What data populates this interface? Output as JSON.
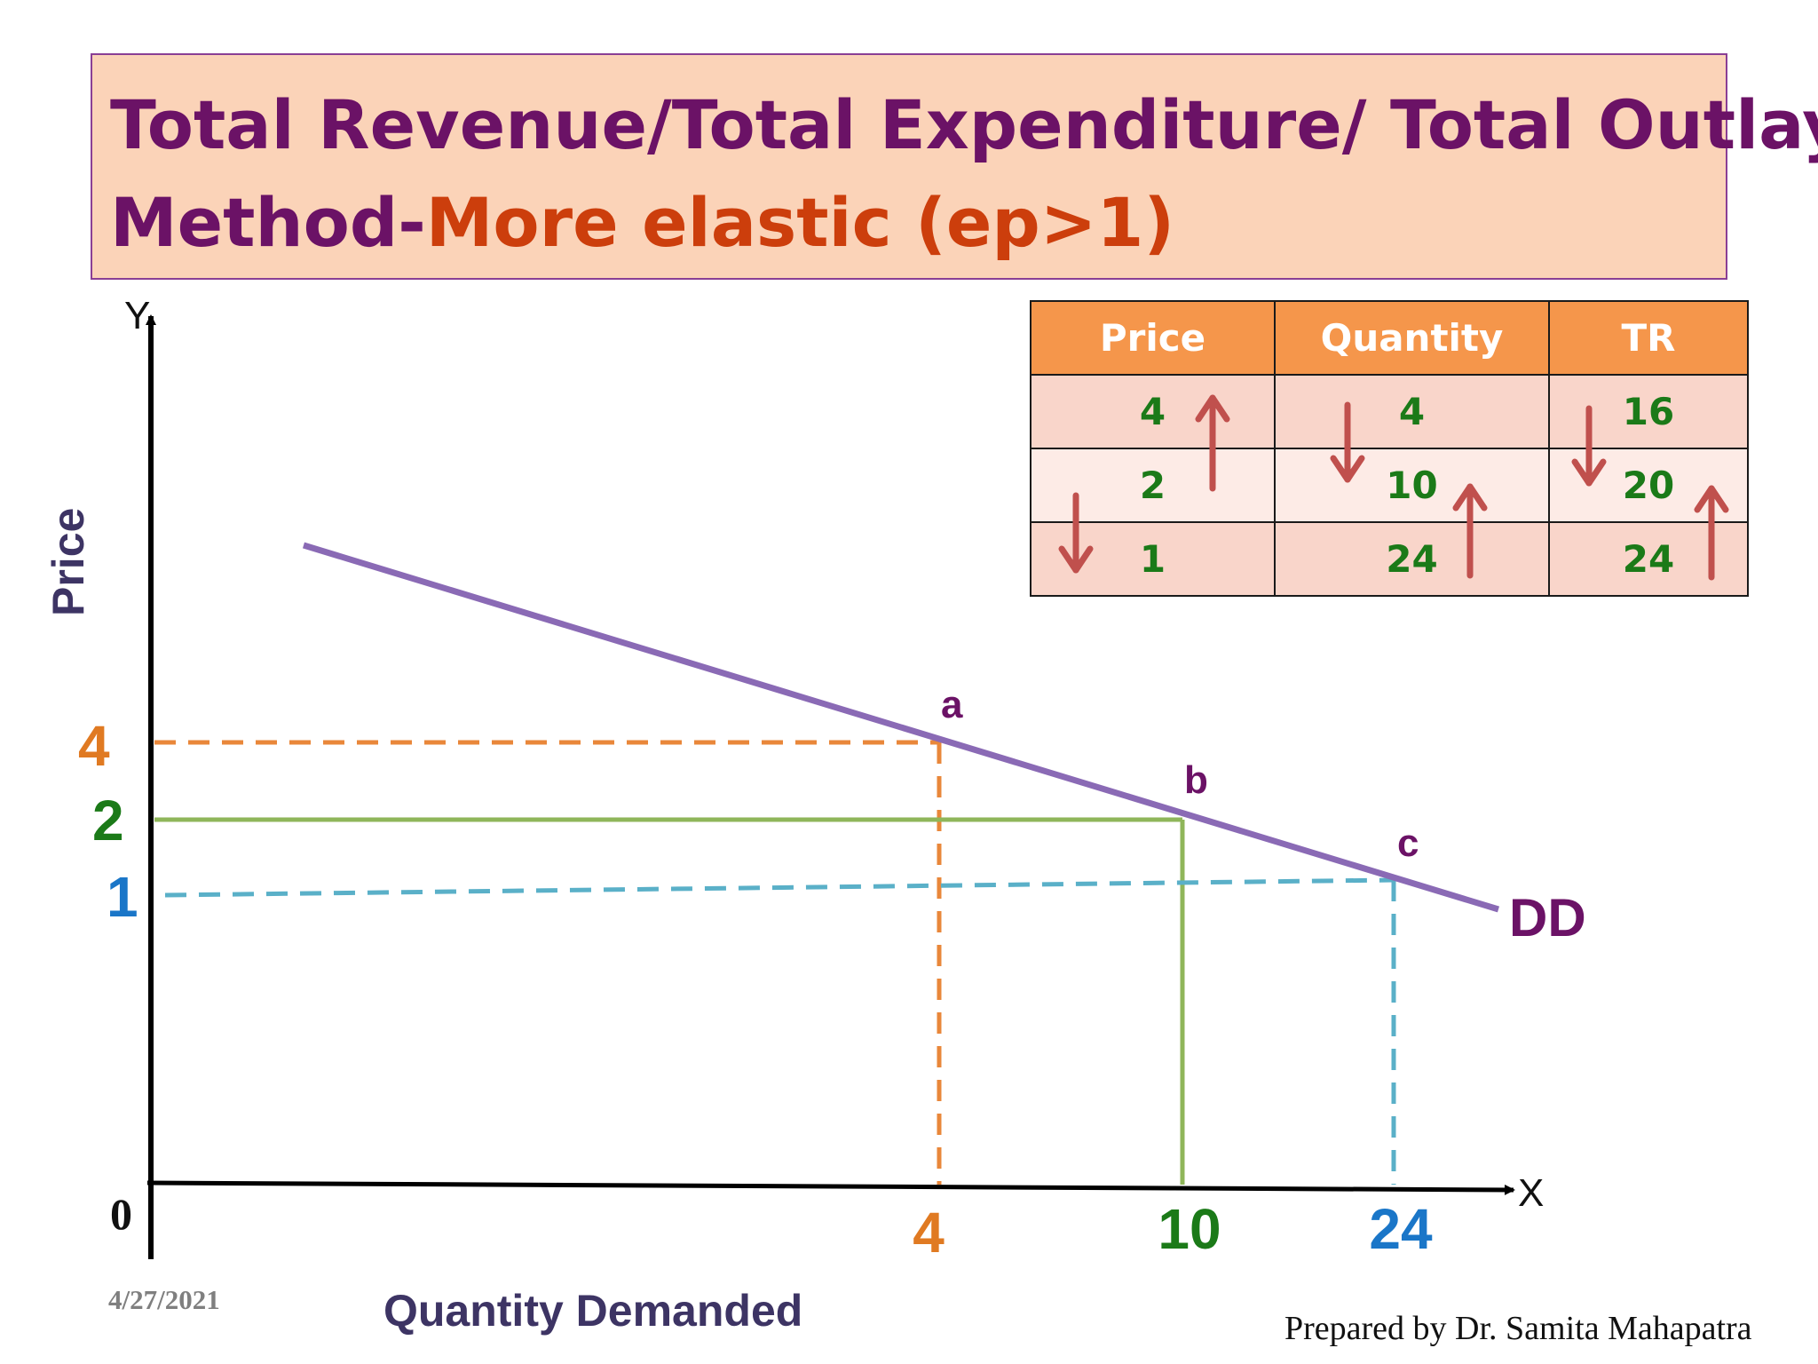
{
  "title": {
    "line1": "Total Revenue/Total Expenditure/ Total Outlay",
    "line2_prefix": "Method-",
    "line2_highlight": "More elastic (ep>1)"
  },
  "table": {
    "headers": [
      "Price",
      "Quantity",
      "TR"
    ],
    "rows": [
      [
        "4",
        "4",
        "16"
      ],
      [
        "2",
        "10",
        "20"
      ],
      [
        "1",
        "24",
        "24"
      ]
    ]
  },
  "diagram": {
    "y_axis_letter": "Y",
    "x_axis_letter": "X",
    "origin_label": "0",
    "y_axis_title": "Price",
    "x_axis_title": "Quantity Demanded",
    "curve_label": "DD",
    "points": [
      {
        "label": "a",
        "price": 4,
        "quantity": 4,
        "color": "#e9873a",
        "style": "dashed"
      },
      {
        "label": "b",
        "price": 2,
        "quantity": 10,
        "color": "#8fb65a",
        "style": "solid"
      },
      {
        "label": "c",
        "price": 1,
        "quantity": 24,
        "color": "#5ab0c8",
        "style": "dashed"
      }
    ],
    "price_tick_labels": [
      "4",
      "2",
      "1"
    ],
    "quantity_tick_labels": [
      "4",
      "10",
      "24"
    ],
    "tick_label_colors": [
      "#e07a22",
      "#1b7a18",
      "#1a76c8"
    ],
    "curve_color": "#8a6ab5"
  },
  "footer": {
    "date": "4/27/2021",
    "credit": "Prepared by Dr. Samita Mahapatra"
  },
  "colors": {
    "title_text": "#6b1266",
    "title_highlight": "#cc3e0c",
    "title_bg": "#fbd3b8",
    "table_header_bg": "#f5964b",
    "table_value_text": "#1b7a18",
    "arrow": "#c0504d"
  }
}
